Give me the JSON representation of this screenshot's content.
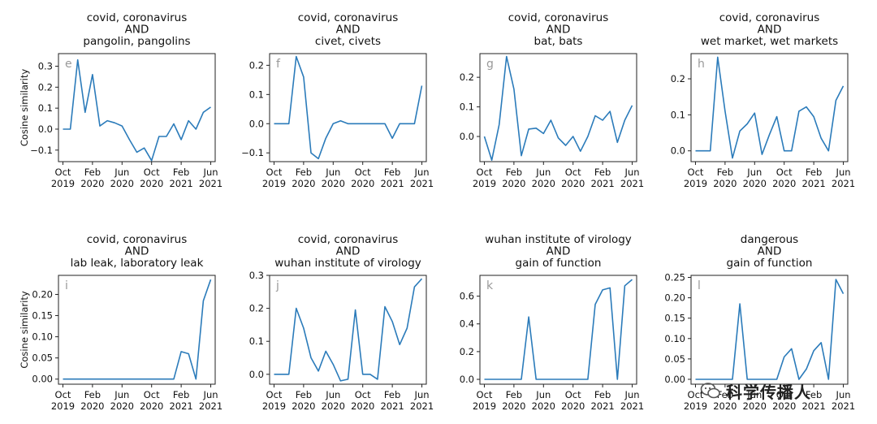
{
  "figure": {
    "ylabel": "Cosine similarity",
    "line_color": "#2b7bba",
    "watermark": "科学传播人"
  },
  "x_ticks": [
    {
      "month": "Oct",
      "year": "2019",
      "t": 0
    },
    {
      "month": "Feb",
      "year": "2020",
      "t": 4
    },
    {
      "month": "Jun",
      "year": "2020",
      "t": 8
    },
    {
      "month": "Oct",
      "year": "2020",
      "t": 12
    },
    {
      "month": "Feb",
      "year": "2021",
      "t": 16
    },
    {
      "month": "Jun",
      "year": "2021",
      "t": 20
    }
  ],
  "chart_data": [
    {
      "type": "line",
      "letter": "e",
      "title": [
        "covid, coronavirus",
        "AND",
        "pangolin, pangolins"
      ],
      "ylabel": "Cosine similarity",
      "ylim": [
        -0.155,
        0.36
      ],
      "yticks": [
        -0.1,
        0.0,
        0.1,
        0.2,
        0.3
      ],
      "x": [
        0,
        1,
        2,
        3,
        4,
        5,
        6,
        7,
        8,
        9,
        10,
        11,
        12,
        13,
        14,
        15,
        16,
        17,
        18,
        19,
        20
      ],
      "values": [
        0.0,
        0.0,
        0.33,
        0.08,
        0.26,
        0.015,
        0.04,
        0.03,
        0.015,
        -0.05,
        -0.11,
        -0.09,
        -0.15,
        -0.035,
        -0.035,
        0.025,
        -0.05,
        0.04,
        0.0,
        0.08,
        0.105
      ]
    },
    {
      "type": "line",
      "letter": "f",
      "title": [
        "covid, coronavirus",
        "AND",
        "civet, civets"
      ],
      "ylabel": "",
      "ylim": [
        -0.13,
        0.24
      ],
      "yticks": [
        -0.1,
        0.0,
        0.1,
        0.2
      ],
      "x": [
        0,
        1,
        2,
        3,
        4,
        5,
        6,
        7,
        8,
        9,
        10,
        11,
        12,
        13,
        14,
        15,
        16,
        17,
        18,
        19,
        20
      ],
      "values": [
        0.0,
        0.0,
        0.0,
        0.23,
        0.16,
        -0.1,
        -0.12,
        -0.05,
        0.0,
        0.01,
        0.0,
        0.0,
        0.0,
        0.0,
        0.0,
        0.0,
        -0.05,
        0.0,
        0.0,
        0.0,
        0.13
      ]
    },
    {
      "type": "line",
      "letter": "g",
      "title": [
        "covid, coronavirus",
        "AND",
        "bat, bats"
      ],
      "ylabel": "",
      "ylim": [
        -0.085,
        0.28
      ],
      "yticks": [
        0.0,
        0.1,
        0.2
      ],
      "x": [
        0,
        1,
        2,
        3,
        4,
        5,
        6,
        7,
        8,
        9,
        10,
        11,
        12,
        13,
        14,
        15,
        16,
        17,
        18,
        19,
        20
      ],
      "values": [
        0.0,
        -0.08,
        0.04,
        0.27,
        0.16,
        -0.065,
        0.025,
        0.028,
        0.01,
        0.055,
        -0.005,
        -0.03,
        0.0,
        -0.05,
        0.0,
        0.07,
        0.055,
        0.085,
        -0.02,
        0.055,
        0.105
      ]
    },
    {
      "type": "line",
      "letter": "h",
      "title": [
        "covid, coronavirus",
        "AND",
        "wet market, wet markets"
      ],
      "ylabel": "",
      "ylim": [
        -0.03,
        0.27
      ],
      "yticks": [
        0.0,
        0.1,
        0.2
      ],
      "x": [
        0,
        1,
        2,
        3,
        4,
        5,
        6,
        7,
        8,
        9,
        10,
        11,
        12,
        13,
        14,
        15,
        16,
        17,
        18,
        19,
        20
      ],
      "values": [
        0.0,
        0.0,
        0.0,
        0.26,
        0.11,
        -0.02,
        0.055,
        0.075,
        0.105,
        -0.01,
        0.045,
        0.095,
        0.0,
        0.0,
        0.11,
        0.122,
        0.095,
        0.035,
        0.0,
        0.14,
        0.18
      ]
    },
    {
      "type": "line",
      "letter": "i",
      "title": [
        "covid, coronavirus",
        "AND",
        "lab leak, laboratory leak"
      ],
      "ylabel": "Cosine similarity",
      "ylim": [
        -0.012,
        0.245
      ],
      "yticks": [
        0.0,
        0.05,
        0.1,
        0.15,
        0.2
      ],
      "x": [
        0,
        1,
        2,
        3,
        4,
        5,
        6,
        7,
        8,
        9,
        10,
        11,
        12,
        13,
        14,
        15,
        16,
        17,
        18,
        19,
        20
      ],
      "values": [
        0,
        0,
        0,
        0,
        0,
        0,
        0,
        0,
        0,
        0,
        0,
        0,
        0,
        0,
        0,
        0,
        0.065,
        0.06,
        0.0,
        0.185,
        0.235
      ]
    },
    {
      "type": "line",
      "letter": "j",
      "title": [
        "covid, coronavirus",
        "AND",
        "wuhan institute of virology"
      ],
      "ylabel": "",
      "ylim": [
        -0.03,
        0.3
      ],
      "yticks": [
        0.0,
        0.1,
        0.2,
        0.3
      ],
      "x": [
        0,
        1,
        2,
        3,
        4,
        5,
        6,
        7,
        8,
        9,
        10,
        11,
        12,
        13,
        14,
        15,
        16,
        17,
        18,
        19,
        20
      ],
      "values": [
        0.0,
        0.0,
        0.0,
        0.2,
        0.14,
        0.05,
        0.01,
        0.07,
        0.03,
        -0.02,
        -0.015,
        0.195,
        0.0,
        0.0,
        -0.015,
        0.205,
        0.16,
        0.09,
        0.14,
        0.265,
        0.29
      ]
    },
    {
      "type": "line",
      "letter": "k",
      "title": [
        "wuhan institute of virology",
        "AND",
        "gain of function"
      ],
      "ylabel": "",
      "ylim": [
        -0.035,
        0.75
      ],
      "yticks": [
        0.0,
        0.2,
        0.4,
        0.6
      ],
      "x": [
        0,
        1,
        2,
        3,
        4,
        5,
        6,
        7,
        8,
        9,
        10,
        11,
        12,
        13,
        14,
        15,
        16,
        17,
        18,
        19,
        20
      ],
      "values": [
        0,
        0,
        0,
        0,
        0,
        0,
        0.45,
        0,
        0,
        0,
        0,
        0,
        0,
        0,
        0,
        0.54,
        0.645,
        0.66,
        0.0,
        0.675,
        0.72
      ]
    },
    {
      "type": "line",
      "letter": "l",
      "title": [
        "dangerous",
        "AND",
        "gain of function"
      ],
      "ylabel": "",
      "ylim": [
        -0.012,
        0.255
      ],
      "yticks": [
        0.0,
        0.05,
        0.1,
        0.15,
        0.2,
        0.25
      ],
      "x": [
        0,
        1,
        2,
        3,
        4,
        5,
        6,
        7,
        8,
        9,
        10,
        11,
        12,
        13,
        14,
        15,
        16,
        17,
        18,
        19,
        20
      ],
      "values": [
        0,
        0,
        0,
        0,
        0,
        0,
        0.185,
        0,
        0,
        0,
        0,
        0,
        0.055,
        0.075,
        0.0,
        0.025,
        0.07,
        0.09,
        0.0,
        0.245,
        0.21
      ]
    }
  ]
}
